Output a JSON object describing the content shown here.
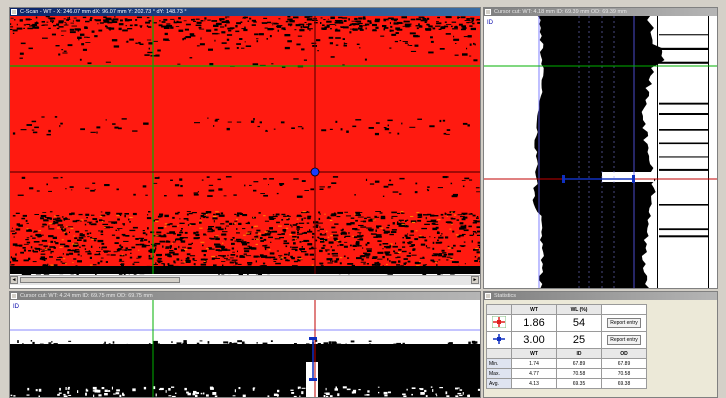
{
  "cscan": {
    "title": "C-Scan - WT - X: 246.07 mm  dX: 96.07 mm   Y: 202.73 °  dY: 148.73 °",
    "colors": {
      "base": "#ff1a10",
      "defect": "#000000",
      "hot": "#ff8800",
      "cross_green": "#00b000",
      "cross_dark": "#6a0000"
    },
    "scroll_left": "◄",
    "scroll_right": "►",
    "corner_icon": "resize-grip-icon"
  },
  "cursor_cut_right": {
    "title": "Cursor cut: WT: 4.18 mm  ID: 69.39 mm  OD: 69.39 mm",
    "id_label": "ID",
    "od_label": "OD"
  },
  "cursor_cut_bottom": {
    "title": "Cursor cut: WT: 4.24 mm  ID: 69.75 mm  OD: 69.75 mm",
    "id_label": "ID"
  },
  "statistics": {
    "title": "Statistics",
    "header": [
      "",
      "WT",
      "WL (%)",
      ""
    ],
    "cursor_rows": [
      {
        "icon": "red-cursor-icon",
        "wt": "1.86",
        "wl": "54",
        "button": "Report entry"
      },
      {
        "icon": "blue-cursor-icon",
        "wt": "3.00",
        "wl": "25",
        "button": "Report entry"
      }
    ],
    "stats_header": [
      "",
      "WT",
      "ID",
      "OD"
    ],
    "rows": [
      {
        "label": "Min.",
        "wt": "1.74",
        "id": "67.89",
        "od": "67.89"
      },
      {
        "label": "Max.",
        "wt": "4.77",
        "id": "70.58",
        "od": "70.58"
      },
      {
        "label": "Avg.",
        "wt": "4.13",
        "id": "69.35",
        "od": "69.38"
      }
    ]
  }
}
